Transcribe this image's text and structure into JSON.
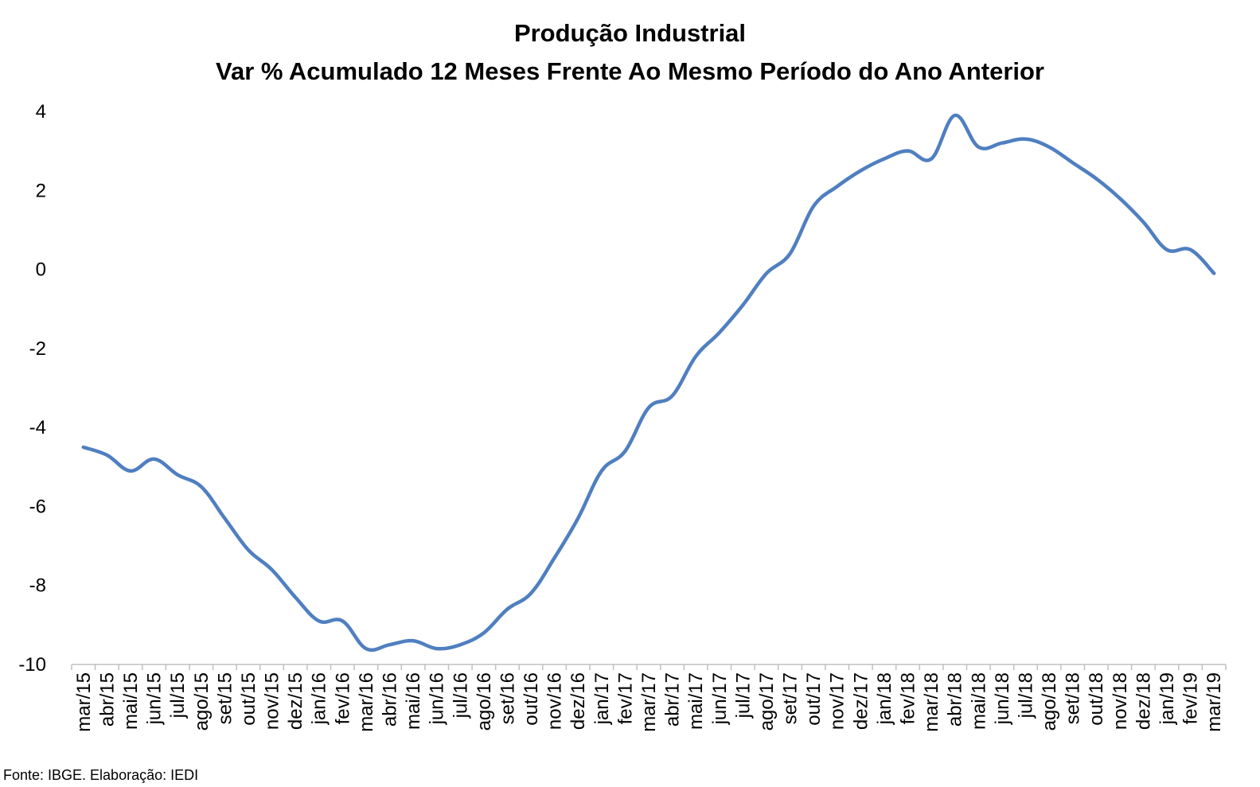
{
  "chart_data": {
    "type": "line",
    "title": "Produção Industrial",
    "subtitle": "Var % Acumulado 12 Meses Frente Ao Mesmo Período do Ano Anterior",
    "xlabel": "",
    "ylabel": "",
    "ylim": [
      -10,
      4
    ],
    "yticks": [
      4,
      2,
      0,
      -2,
      -4,
      -6,
      -8,
      -10
    ],
    "grid": false,
    "legend": "none",
    "colors": {
      "series": "#4F7FC0",
      "axis": "#BFBFBF"
    },
    "categories": [
      "mar/15",
      "abr/15",
      "mai/15",
      "jun/15",
      "jul/15",
      "ago/15",
      "set/15",
      "out/15",
      "nov/15",
      "dez/15",
      "jan/16",
      "fev/16",
      "mar/16",
      "abr/16",
      "mai/16",
      "jun/16",
      "jul/16",
      "ago/16",
      "set/16",
      "out/16",
      "nov/16",
      "dez/16",
      "jan/17",
      "fev/17",
      "mar/17",
      "abr/17",
      "mai/17",
      "jun/17",
      "jul/17",
      "ago/17",
      "set/17",
      "out/17",
      "nov/17",
      "dez/17",
      "jan/18",
      "fev/18",
      "mar/18",
      "abr/18",
      "mai/18",
      "jun/18",
      "jul/18",
      "ago/18",
      "set/18",
      "out/18",
      "nov/18",
      "dez/18",
      "jan/19",
      "fev/19",
      "mar/19"
    ],
    "series": [
      {
        "values": [
          -4.5,
          -4.7,
          -5.1,
          -4.8,
          -5.2,
          -5.5,
          -6.3,
          -7.1,
          -7.6,
          -8.3,
          -8.9,
          -8.9,
          -9.6,
          -9.5,
          -9.4,
          -9.6,
          -9.5,
          -9.2,
          -8.6,
          -8.2,
          -7.3,
          -6.3,
          -5.1,
          -4.6,
          -3.5,
          -3.2,
          -2.2,
          -1.6,
          -0.9,
          -0.1,
          0.4,
          1.6,
          2.1,
          2.5,
          2.8,
          3.0,
          2.8,
          3.9,
          3.1,
          3.2,
          3.3,
          3.1,
          2.7,
          2.3,
          1.8,
          1.2,
          0.5,
          0.5,
          -0.1
        ]
      }
    ]
  },
  "source_note": "Fonte: IBGE. Elaboração: IEDI"
}
